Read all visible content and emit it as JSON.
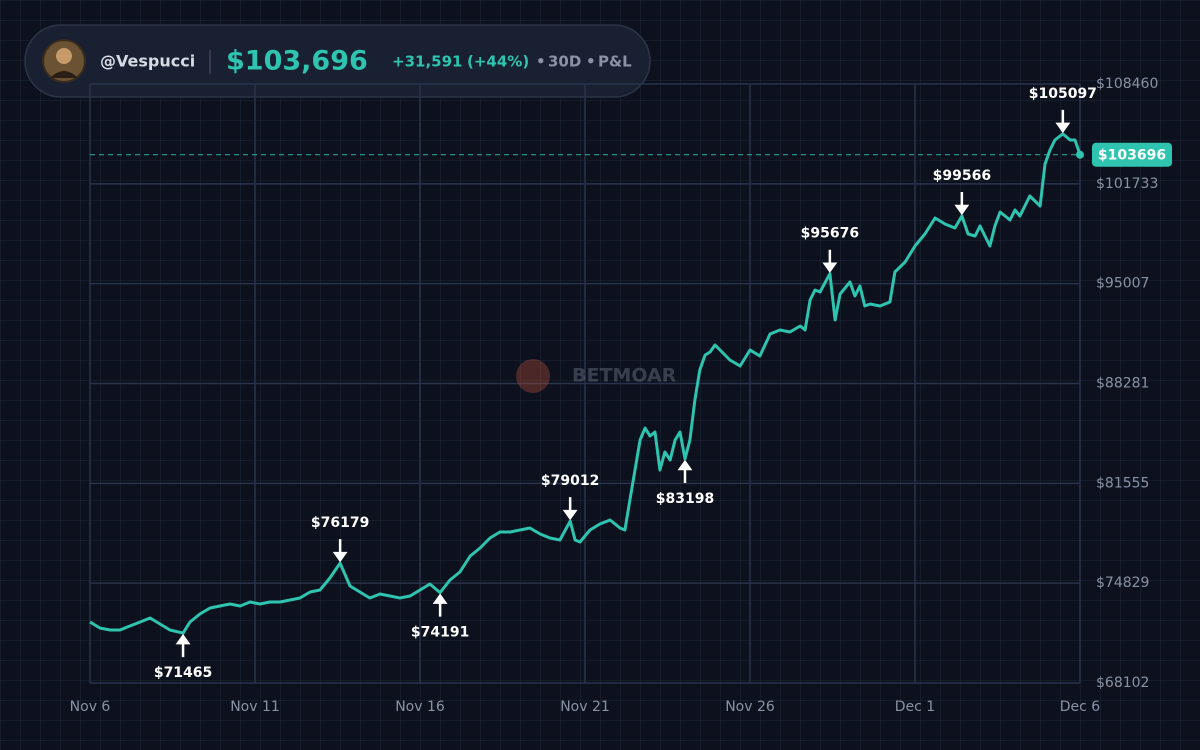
{
  "header": {
    "username": "@Vespucci",
    "balance": "$103,696",
    "change": "+31,591",
    "change_percent": "(+44%)",
    "period": "30D",
    "metric": "P&L"
  },
  "chart_data": {
    "type": "line",
    "watermark": "BETMOAR",
    "color": "#2ec4b0",
    "x": [
      0,
      0.3,
      0.61,
      0.91,
      1.21,
      1.52,
      1.82,
      2.12,
      2.42,
      2.82,
      3.03,
      3.33,
      3.64,
      3.94,
      4.24,
      4.55,
      4.85,
      5.15,
      5.45,
      5.76,
      6.06,
      6.36,
      6.67,
      6.97,
      7.27,
      7.58,
      7.88,
      8.18,
      8.48,
      8.79,
      9.09,
      9.39,
      9.7,
      10.0,
      10.3,
      10.61,
      10.91,
      11.21,
      11.52,
      11.82,
      12.12,
      12.42,
      12.73,
      13.03,
      13.33,
      13.64,
      13.94,
      14.24,
      14.55,
      14.7,
      14.85,
      15.15,
      15.45,
      15.76,
      16.06,
      16.21,
      16.36,
      16.67,
      16.82,
      16.97,
      17.12,
      17.27,
      17.42,
      17.58,
      17.73,
      17.88,
      18.03,
      18.18,
      18.33,
      18.48,
      18.64,
      18.79,
      18.94,
      19.09,
      19.39,
      19.7,
      20.0,
      20.3,
      20.61,
      20.91,
      21.21,
      21.52,
      21.67,
      21.82,
      21.97,
      22.12,
      22.42,
      22.58,
      22.73,
      23.03,
      23.18,
      23.33,
      23.48,
      23.64,
      23.94,
      24.24,
      24.39,
      24.7,
      25.0,
      25.3,
      25.61,
      25.91,
      26.21,
      26.42,
      26.61,
      26.82,
      26.97,
      27.27,
      27.42,
      27.58,
      27.88,
      28.03,
      28.18,
      28.48,
      28.79,
      28.94,
      29.09,
      29.24,
      29.48,
      29.7,
      29.85,
      30.0
    ],
    "values": [
      72212,
      71808,
      71673,
      71673,
      71943,
      72212,
      72482,
      72077,
      71673,
      71465,
      72212,
      72751,
      73156,
      73290,
      73425,
      73290,
      73560,
      73425,
      73560,
      73560,
      73695,
      73829,
      74234,
      74368,
      75177,
      76179,
      74638,
      74234,
      73829,
      74099,
      73964,
      73829,
      73964,
      74368,
      74773,
      74191,
      75042,
      75581,
      76659,
      77198,
      77872,
      78276,
      78276,
      78411,
      78546,
      78142,
      77872,
      77737,
      79012,
      77737,
      77603,
      78411,
      78815,
      79085,
      78546,
      78411,
      80433,
      84475,
      85284,
      84745,
      85014,
      82454,
      83667,
      83128,
      84475,
      85014,
      83198,
      84475,
      87171,
      89192,
      90203,
      90405,
      90876,
      90540,
      89866,
      89461,
      90540,
      90135,
      91618,
      91887,
      91752,
      92157,
      91887,
      93909,
      94582,
      94448,
      95676,
      92561,
      94313,
      95121,
      94178,
      94852,
      93504,
      93639,
      93504,
      93774,
      95795,
      96469,
      97547,
      98356,
      99434,
      99029,
      98760,
      99566,
      98356,
      98221,
      98895,
      97547,
      98895,
      99838,
      99299,
      99973,
      99568,
      100916,
      100242,
      103072,
      104016,
      104689,
      105097,
      104689,
      104689,
      103696
    ],
    "xlim": [
      0,
      30
    ],
    "xticks": [
      {
        "value": 0,
        "label": "Nov 6"
      },
      {
        "value": 5,
        "label": "Nov 11"
      },
      {
        "value": 10,
        "label": "Nov 16"
      },
      {
        "value": 15,
        "label": "Nov 21"
      },
      {
        "value": 20,
        "label": "Nov 26"
      },
      {
        "value": 25,
        "label": "Dec 1"
      },
      {
        "value": 30,
        "label": "Dec 6"
      }
    ],
    "ylim": [
      68102,
      108460
    ],
    "yticks": [
      {
        "value": 68102,
        "label": "$68102"
      },
      {
        "value": 74829,
        "label": "$74829"
      },
      {
        "value": 81555,
        "label": "$81555"
      },
      {
        "value": 88281,
        "label": "$88281"
      },
      {
        "value": 95007,
        "label": "$95007"
      },
      {
        "value": 101733,
        "label": "$101733"
      },
      {
        "value": 108460,
        "label": "$108460"
      }
    ],
    "grid": true,
    "current": {
      "value": 103696,
      "label": "$103696"
    },
    "annotations": [
      {
        "x": 2.82,
        "value": 71465,
        "label": "$71465",
        "direction": "down"
      },
      {
        "x": 7.58,
        "value": 76179,
        "label": "$76179",
        "direction": "up"
      },
      {
        "x": 10.61,
        "value": 74191,
        "label": "$74191",
        "direction": "down"
      },
      {
        "x": 14.55,
        "value": 79012,
        "label": "$79012",
        "direction": "up"
      },
      {
        "x": 18.03,
        "value": 83198,
        "label": "$83198",
        "direction": "down"
      },
      {
        "x": 22.42,
        "value": 95676,
        "label": "$95676",
        "direction": "up"
      },
      {
        "x": 26.42,
        "value": 99566,
        "label": "$99566",
        "direction": "up"
      },
      {
        "x": 29.48,
        "value": 105097,
        "label": "$105097",
        "direction": "up"
      }
    ]
  }
}
